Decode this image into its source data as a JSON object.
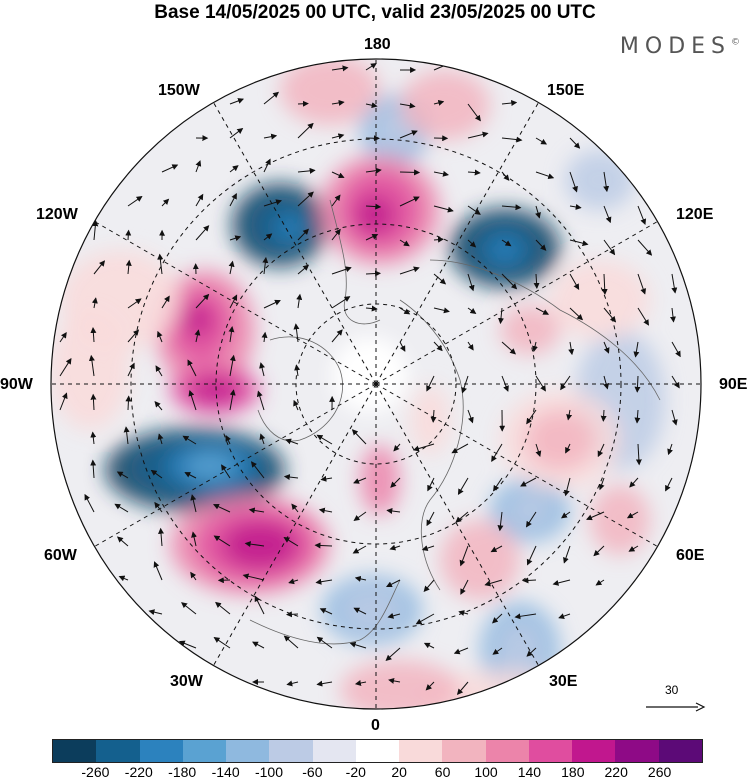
{
  "title": "Base 14/05/2025 00 UTC, valid 23/05/2025 00 UTC",
  "brand": "MODES",
  "brand_mark": "©",
  "lon_labels": {
    "l180": "180",
    "l150e": "150E",
    "l120e": "120E",
    "l90e": "90E",
    "l60e": "60E",
    "l30e": "30E",
    "l0": "0",
    "l30w": "30W",
    "l60w": "60W",
    "l90w": "90W",
    "l120w": "120W",
    "l150w": "150W"
  },
  "reference_vector": {
    "label": "30"
  },
  "colorbar": {
    "colors": [
      "#0c3d5c",
      "#14608e",
      "#2c82be",
      "#5aa2d2",
      "#8fb9df",
      "#bccbe5",
      "#e4e6f1",
      "#ffffff",
      "#f9dada",
      "#f2b4bf",
      "#ec84aa",
      "#e04d9f",
      "#c1178e",
      "#8e0a86",
      "#5c0a77"
    ],
    "tick_labels": [
      "-260",
      "-220",
      "-180",
      "-140",
      "-100",
      "-60",
      "-20",
      "20",
      "60",
      "100",
      "140",
      "180",
      "220",
      "260"
    ]
  }
}
